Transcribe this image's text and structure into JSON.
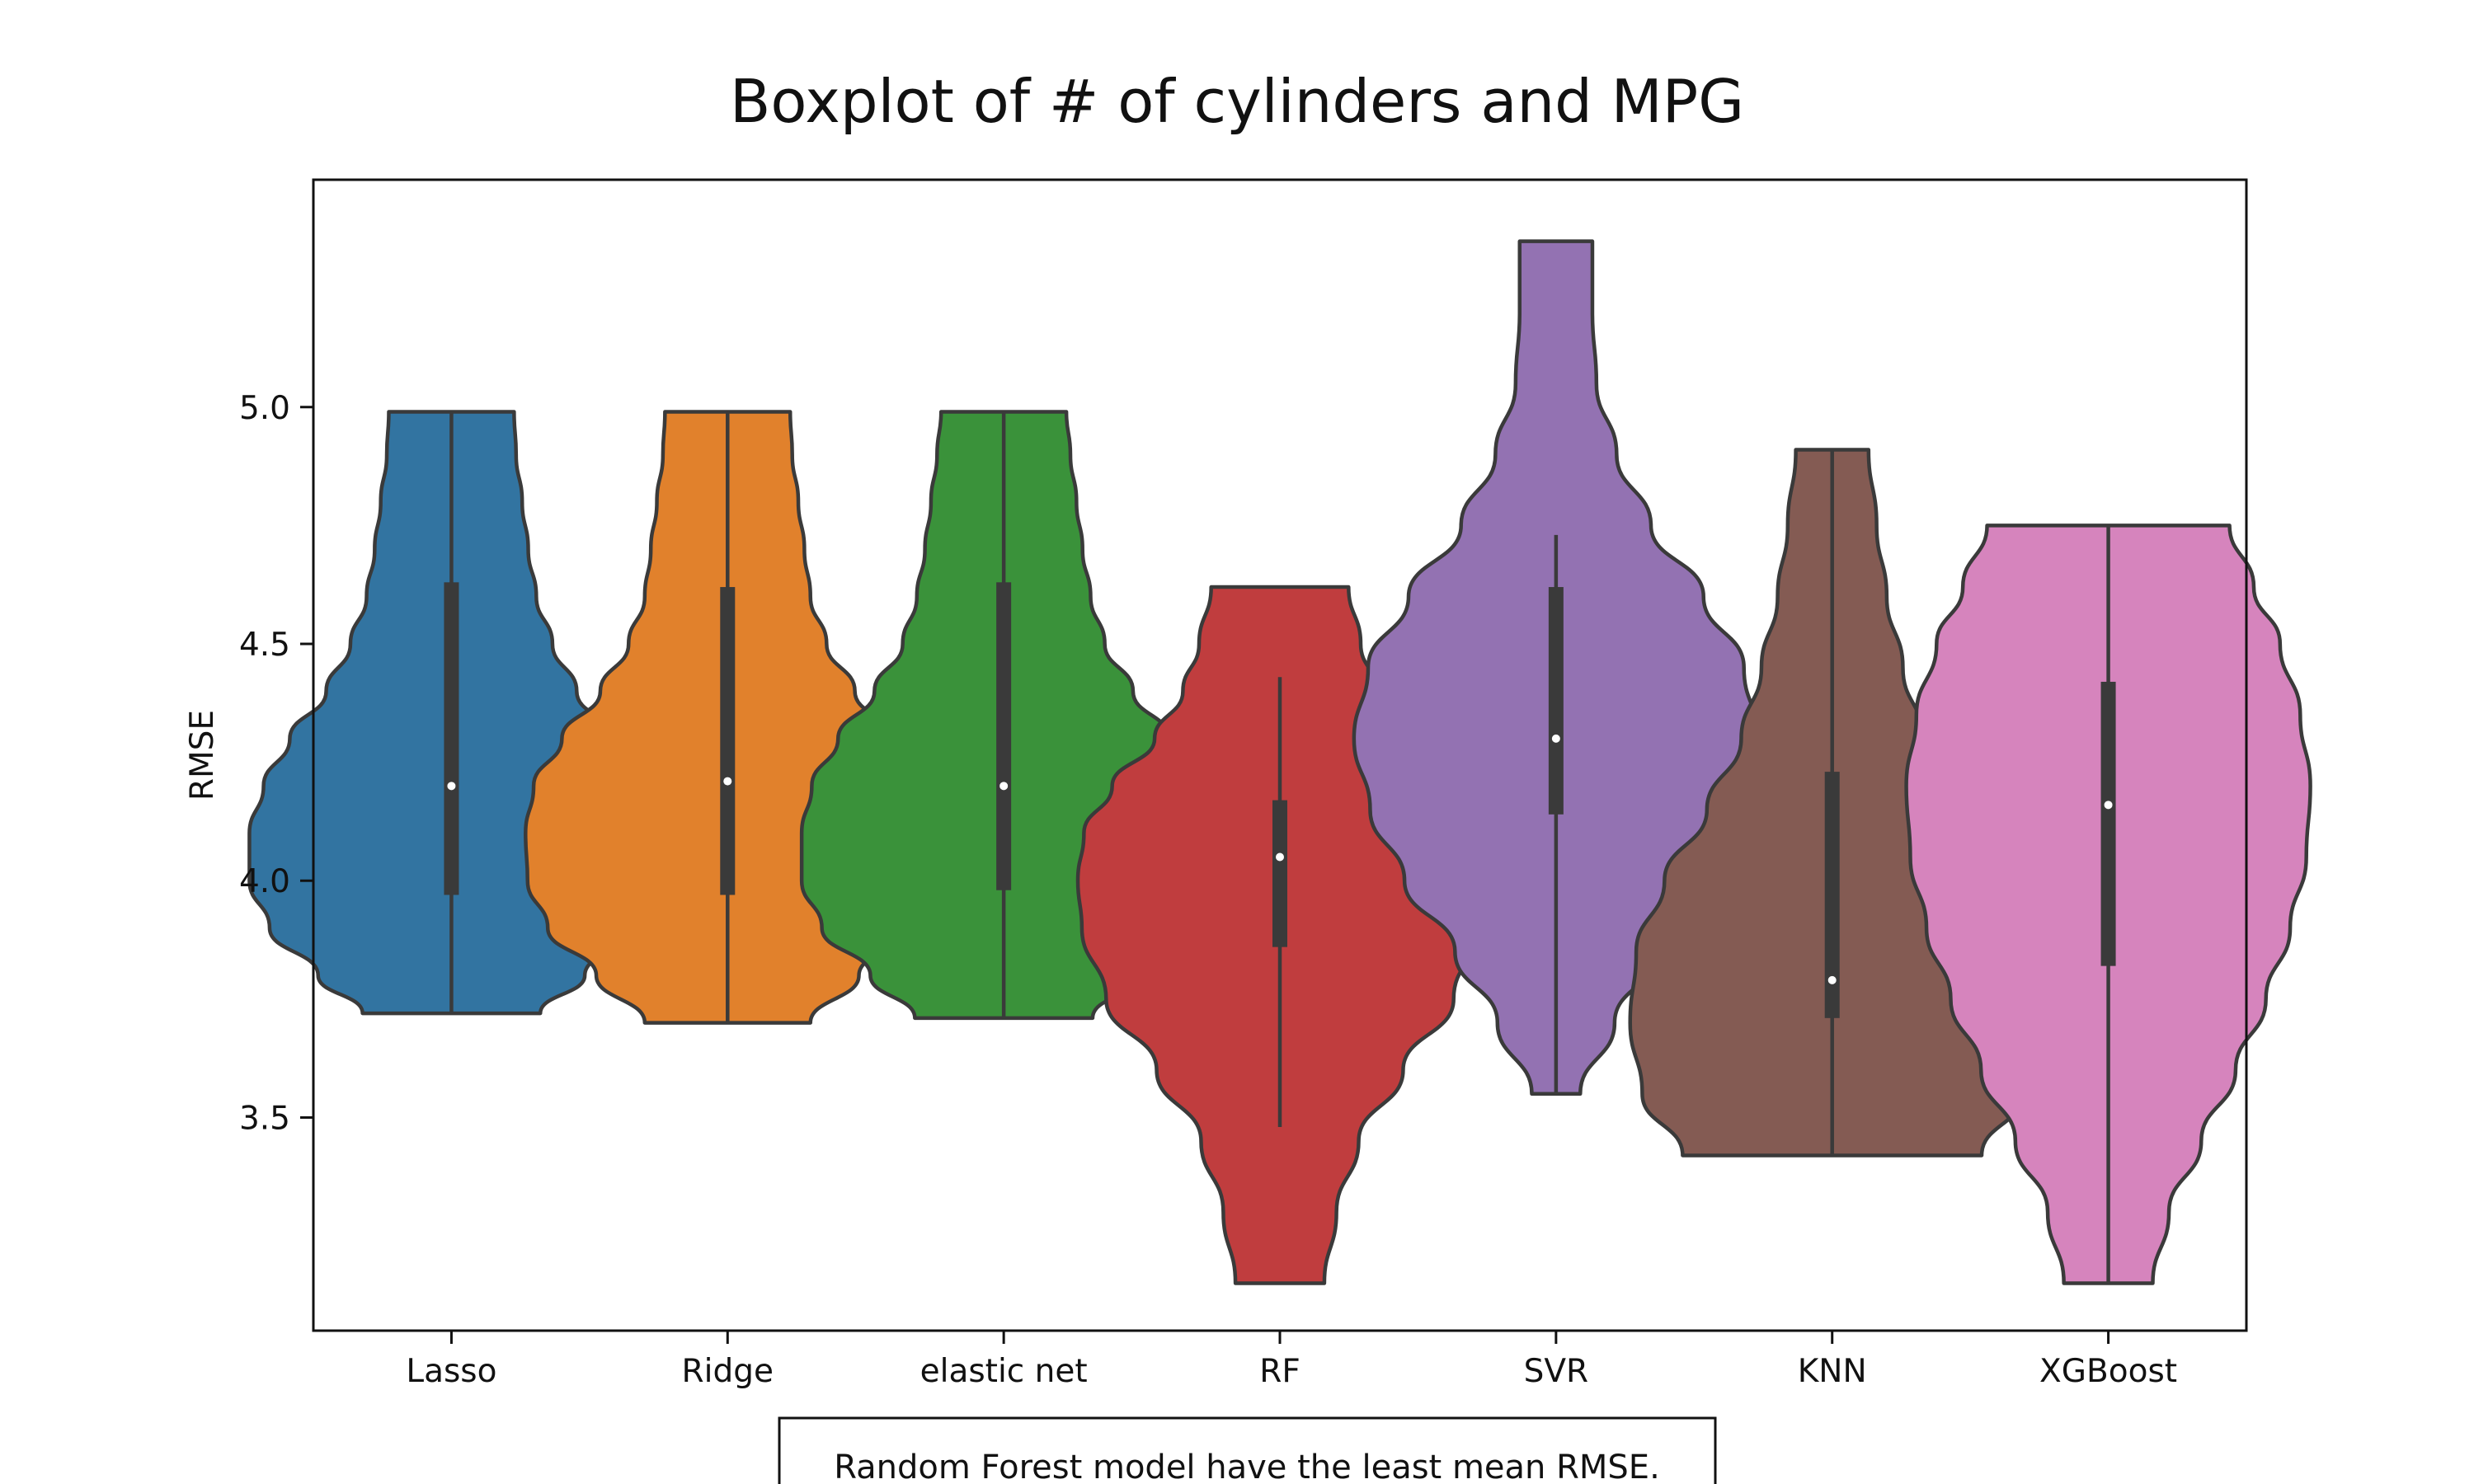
{
  "chart_data": {
    "type": "violin",
    "title": "Boxplot of # of cylinders and MPG",
    "xlabel": "",
    "ylabel": "RMSE",
    "ylim": [
      3.05,
      5.48
    ],
    "yticks": [
      "3.5",
      "4.0",
      "4.5",
      "5.0"
    ],
    "annotation": "Random Forest model have the least mean RMSE.",
    "grid": false,
    "violins": [
      {
        "category": "Lasso",
        "color": "#3274a1",
        "min": 3.72,
        "max": 4.99,
        "q1": 3.97,
        "q3": 4.63,
        "median": 4.2,
        "wmin": 3.72,
        "wmax": 4.99,
        "density": [
          [
            3.72,
            0.44
          ],
          [
            3.8,
            0.66
          ],
          [
            3.9,
            0.9
          ],
          [
            4.0,
            1.0
          ],
          [
            4.1,
            1.0
          ],
          [
            4.2,
            0.93
          ],
          [
            4.3,
            0.8
          ],
          [
            4.4,
            0.62
          ],
          [
            4.5,
            0.5
          ],
          [
            4.6,
            0.42
          ],
          [
            4.7,
            0.38
          ],
          [
            4.8,
            0.35
          ],
          [
            4.9,
            0.32
          ],
          [
            4.99,
            0.31
          ]
        ]
      },
      {
        "category": "Ridge",
        "color": "#e1812c",
        "min": 3.7,
        "max": 4.99,
        "q1": 3.97,
        "q3": 4.62,
        "median": 4.21,
        "wmin": 3.7,
        "wmax": 4.99,
        "density": [
          [
            3.7,
            0.41
          ],
          [
            3.8,
            0.65
          ],
          [
            3.9,
            0.89
          ],
          [
            4.0,
            0.99
          ],
          [
            4.1,
            1.0
          ],
          [
            4.2,
            0.96
          ],
          [
            4.3,
            0.82
          ],
          [
            4.4,
            0.63
          ],
          [
            4.5,
            0.49
          ],
          [
            4.6,
            0.41
          ],
          [
            4.7,
            0.38
          ],
          [
            4.8,
            0.35
          ],
          [
            4.9,
            0.32
          ],
          [
            4.99,
            0.31
          ]
        ]
      },
      {
        "category": "elastic net",
        "color": "#3a923a",
        "min": 3.71,
        "max": 4.99,
        "q1": 3.98,
        "q3": 4.63,
        "median": 4.2,
        "wmin": 3.71,
        "wmax": 4.99,
        "density": [
          [
            3.71,
            0.44
          ],
          [
            3.8,
            0.66
          ],
          [
            3.9,
            0.9
          ],
          [
            4.0,
            1.0
          ],
          [
            4.1,
            1.0
          ],
          [
            4.2,
            0.95
          ],
          [
            4.3,
            0.82
          ],
          [
            4.4,
            0.64
          ],
          [
            4.5,
            0.5
          ],
          [
            4.6,
            0.43
          ],
          [
            4.7,
            0.39
          ],
          [
            4.8,
            0.36
          ],
          [
            4.9,
            0.33
          ],
          [
            4.99,
            0.31
          ]
        ]
      },
      {
        "category": "RF",
        "color": "#c03d3e",
        "min": 3.15,
        "max": 4.62,
        "q1": 3.86,
        "q3": 4.17,
        "median": 4.05,
        "wmin": 3.48,
        "wmax": 4.43,
        "density": [
          [
            3.15,
            0.22
          ],
          [
            3.3,
            0.28
          ],
          [
            3.45,
            0.39
          ],
          [
            3.6,
            0.61
          ],
          [
            3.75,
            0.86
          ],
          [
            3.9,
            0.98
          ],
          [
            4.0,
            1.0
          ],
          [
            4.1,
            0.97
          ],
          [
            4.2,
            0.83
          ],
          [
            4.3,
            0.62
          ],
          [
            4.4,
            0.48
          ],
          [
            4.5,
            0.4
          ],
          [
            4.62,
            0.34
          ]
        ]
      },
      {
        "category": "SVR",
        "color": "#9372b2",
        "min": 3.55,
        "max": 5.35,
        "q1": 4.14,
        "q3": 4.62,
        "median": 4.3,
        "wmin": 3.55,
        "wmax": 4.73,
        "density": [
          [
            3.55,
            0.12
          ],
          [
            3.7,
            0.29
          ],
          [
            3.85,
            0.5
          ],
          [
            4.0,
            0.75
          ],
          [
            4.15,
            0.92
          ],
          [
            4.3,
            1.0
          ],
          [
            4.45,
            0.93
          ],
          [
            4.6,
            0.73
          ],
          [
            4.75,
            0.47
          ],
          [
            4.9,
            0.3
          ],
          [
            5.05,
            0.2
          ],
          [
            5.2,
            0.18
          ],
          [
            5.35,
            0.18
          ]
        ]
      },
      {
        "category": "KNN",
        "color": "#845b53",
        "min": 3.42,
        "max": 4.91,
        "q1": 3.71,
        "q3": 4.23,
        "median": 3.79,
        "wmin": 3.42,
        "wmax": 4.91,
        "density": [
          [
            3.42,
            0.74
          ],
          [
            3.55,
            0.94
          ],
          [
            3.7,
            1.0
          ],
          [
            3.85,
            0.97
          ],
          [
            4.0,
            0.83
          ],
          [
            4.15,
            0.62
          ],
          [
            4.3,
            0.45
          ],
          [
            4.45,
            0.35
          ],
          [
            4.6,
            0.27
          ],
          [
            4.75,
            0.22
          ],
          [
            4.91,
            0.18
          ]
        ]
      },
      {
        "category": "XGBoost",
        "color": "#d684bd",
        "min": 3.15,
        "max": 4.75,
        "q1": 3.82,
        "q3": 4.42,
        "median": 4.16,
        "wmin": 3.15,
        "wmax": 4.75,
        "density": [
          [
            3.15,
            0.22
          ],
          [
            3.3,
            0.3
          ],
          [
            3.45,
            0.46
          ],
          [
            3.6,
            0.63
          ],
          [
            3.75,
            0.78
          ],
          [
            3.9,
            0.9
          ],
          [
            4.05,
            0.98
          ],
          [
            4.2,
            1.0
          ],
          [
            4.35,
            0.95
          ],
          [
            4.5,
            0.85
          ],
          [
            4.62,
            0.72
          ],
          [
            4.75,
            0.6
          ]
        ]
      }
    ]
  }
}
